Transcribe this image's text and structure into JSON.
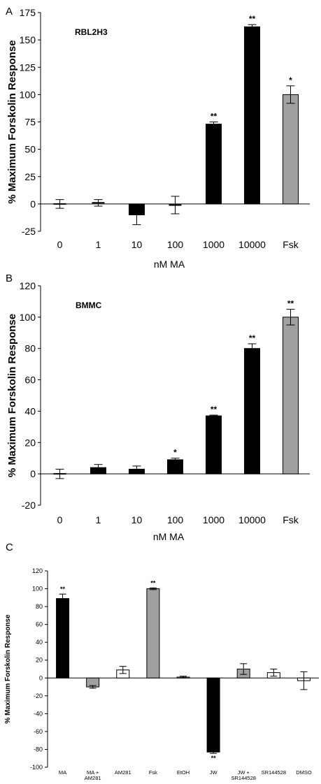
{
  "chart_data": [
    {
      "panel": "A",
      "type": "bar",
      "cell_label": "RBL2H3",
      "xlabel": "nM MA",
      "ylabel": "% Maximum Forskolin Response",
      "ylim": [
        -25,
        175
      ],
      "yticks": [
        -25,
        0,
        25,
        50,
        75,
        100,
        125,
        150,
        175
      ],
      "categories": [
        "0",
        "1",
        "10",
        "100",
        "1000",
        "10000",
        "Fsk"
      ],
      "values": [
        0,
        1,
        -10,
        -1,
        73,
        162,
        100
      ],
      "errors": [
        4,
        3,
        9,
        8,
        2,
        2,
        8
      ],
      "colors": [
        "#000000",
        "#000000",
        "#000000",
        "#000000",
        "#000000",
        "#000000",
        "#a0a0a0"
      ],
      "significance": [
        "",
        "",
        "",
        "",
        "**",
        "**",
        "*"
      ]
    },
    {
      "panel": "B",
      "type": "bar",
      "cell_label": "BMMC",
      "xlabel": "nM MA",
      "ylabel": "% Maximum Forskolin Response",
      "ylim": [
        -20,
        120
      ],
      "yticks": [
        -20,
        0,
        20,
        40,
        60,
        80,
        100,
        120
      ],
      "categories": [
        "0",
        "1",
        "10",
        "100",
        "1000",
        "10000",
        "Fsk"
      ],
      "values": [
        0,
        4,
        3,
        9,
        37,
        80,
        100
      ],
      "errors": [
        3,
        2,
        2,
        1,
        0.5,
        3,
        5
      ],
      "colors": [
        "#000000",
        "#000000",
        "#000000",
        "#000000",
        "#000000",
        "#000000",
        "#a0a0a0"
      ],
      "significance": [
        "",
        "",
        "",
        "*",
        "**",
        "**",
        "**"
      ]
    },
    {
      "panel": "C",
      "type": "bar",
      "xlabel": "",
      "ylabel": "% Maximum Forskolin Response",
      "ylim": [
        -100,
        120
      ],
      "yticks": [
        -100,
        -80,
        -60,
        -40,
        -20,
        0,
        20,
        40,
        60,
        80,
        100,
        120
      ],
      "categories": [
        [
          "MA"
        ],
        [
          "MA +",
          "AM281"
        ],
        [
          "AM281"
        ],
        [
          "Fsk"
        ],
        [
          "EtOH"
        ],
        [
          "JW"
        ],
        [
          "JW +",
          "SR144528"
        ],
        [
          "SR144528"
        ],
        [
          "DMSO"
        ]
      ],
      "values": [
        89,
        -10,
        9,
        100,
        1,
        -83,
        10,
        6,
        -3
      ],
      "errors": [
        5,
        1.5,
        4,
        1,
        1,
        1.5,
        6,
        4,
        10
      ],
      "colors": [
        "#000000",
        "#a0a0a0",
        "#ffffff",
        "#a0a0a0",
        "#ffffff",
        "#000000",
        "#a0a0a0",
        "#ffffff",
        "#ffffff"
      ],
      "significance": [
        "**",
        "",
        "",
        "**",
        "",
        "**",
        "",
        "",
        ""
      ]
    }
  ]
}
